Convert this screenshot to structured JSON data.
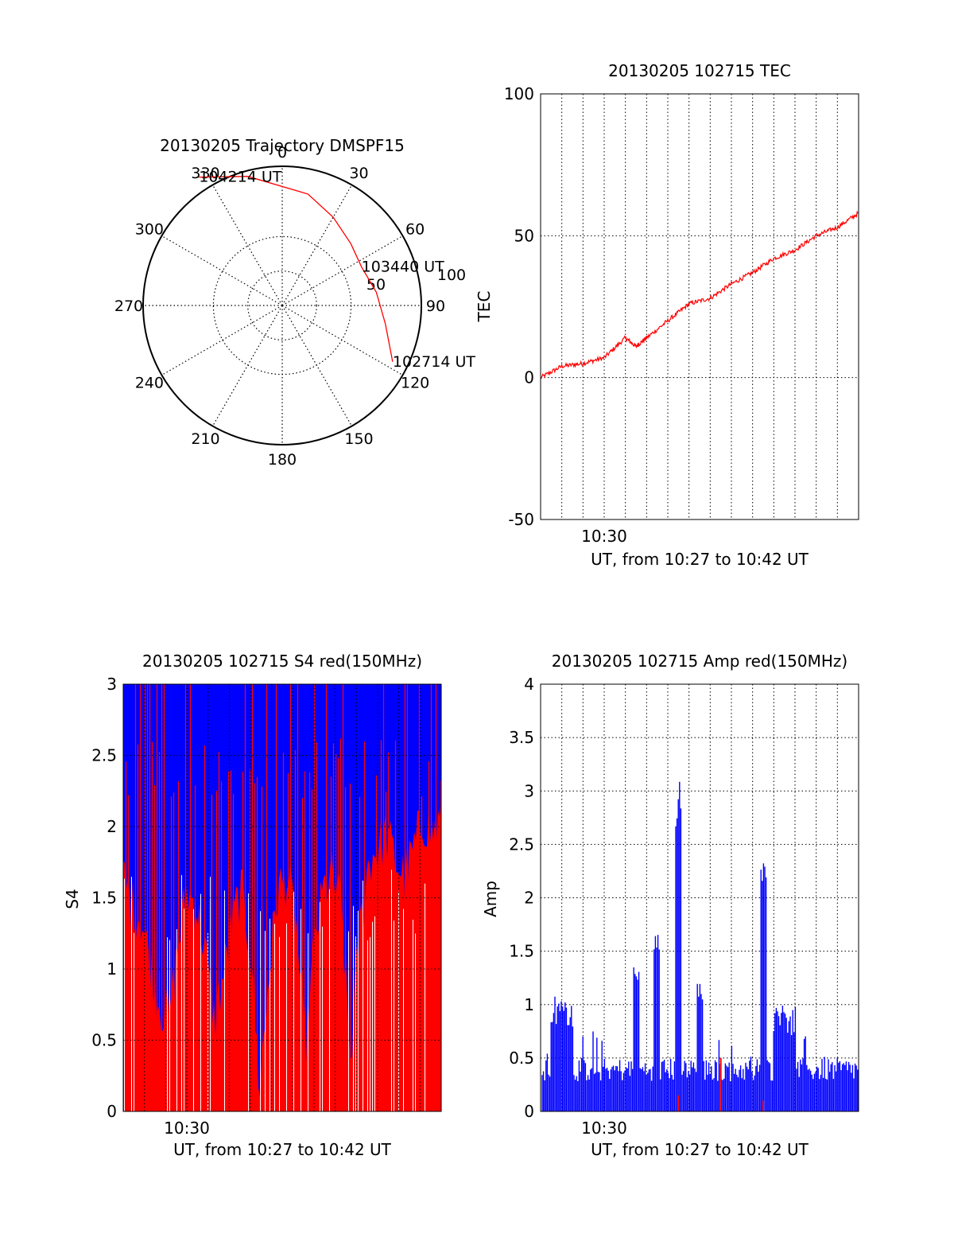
{
  "chart_data": [
    {
      "type": "polar",
      "title": "20130205 Trajectory DMSPF15",
      "azimuth_labels": [
        "0",
        "30",
        "60",
        "90",
        "120",
        "150",
        "180",
        "210",
        "240",
        "270",
        "300",
        "330"
      ],
      "azimuth_values": [
        0,
        30,
        60,
        90,
        120,
        150,
        180,
        210,
        240,
        270,
        300,
        330
      ],
      "radial_labels": [
        "50",
        "100"
      ],
      "radial_values": [
        50,
        100
      ],
      "trajectory_color": "#ff0000",
      "trajectory": [
        {
          "az": 117,
          "r": 90
        },
        {
          "az": 100,
          "r": 76
        },
        {
          "az": 82,
          "r": 69
        },
        {
          "az": 64,
          "r": 64
        },
        {
          "az": 48,
          "r": 67
        },
        {
          "az": 30,
          "r": 74
        },
        {
          "az": 13,
          "r": 83
        },
        {
          "az": 345,
          "r": 97
        },
        {
          "az": 327,
          "r": 111
        }
      ],
      "annotations": [
        {
          "text": "102714 UT",
          "az": 117,
          "r": 90
        },
        {
          "text": "103440 UT",
          "az": 64,
          "r": 64
        },
        {
          "text": "104214 UT",
          "az": 327,
          "r": 111
        }
      ]
    },
    {
      "type": "line",
      "title": "20130205 102715 TEC",
      "xlabel": "UT, from 10:27 to 10:42 UT",
      "ylabel": "TEC",
      "xlim": [
        "10:27",
        "10:42"
      ],
      "ylim": [
        -50,
        100
      ],
      "yticks": [
        -50,
        0,
        50,
        100
      ],
      "xtick_labels": [
        "10:30"
      ],
      "grid": true,
      "series": [
        {
          "color": "#ff0000",
          "x": [
            "10:27",
            "10:28",
            "10:29",
            "10:30",
            "10:31",
            "10:31:30",
            "10:32",
            "10:33",
            "10:34",
            "10:35",
            "10:36",
            "10:37",
            "10:38",
            "10:39",
            "10:40",
            "10:41",
            "10:42"
          ],
          "y": [
            0,
            4,
            5,
            7,
            14,
            11,
            14,
            20,
            26,
            28,
            33,
            37,
            42,
            45,
            50,
            53,
            58
          ]
        }
      ]
    },
    {
      "type": "bar",
      "title": "20130205 102715 S4 red(150MHz)",
      "xlabel": "UT, from 10:27 to 10:42 UT",
      "ylabel": "S4",
      "xlim": [
        "10:27",
        "10:42"
      ],
      "ylim": [
        0,
        3
      ],
      "yticks": [
        "0",
        "0.5",
        "1",
        "1.5",
        "2",
        "2.5",
        "3"
      ],
      "xtick_labels": [
        "10:30"
      ],
      "grid": true,
      "series": [
        {
          "name": "",
          "color": "#ff0000",
          "description": "dense spikes saturating at 3, base level near 1.7"
        },
        {
          "name": "",
          "color": "#0000ff",
          "description": "band between ~1.5 and 3 with dips"
        }
      ],
      "envelope_lower": [
        1.9,
        1.7,
        1.6,
        1.3,
        1.0,
        0.9,
        1.4,
        1.8,
        1.7,
        1.4,
        0.9,
        1.2,
        1.6,
        1.8,
        1.4,
        0.4,
        1.2,
        1.8,
        1.9,
        1.6,
        0.7,
        1.4,
        1.8,
        1.9,
        1.7,
        0.6,
        1.5,
        2.0,
        2.1,
        2.2,
        2.0,
        1.9,
        2.1,
        2.3,
        2.2,
        2.3
      ]
    },
    {
      "type": "bar",
      "title": "20130205 102715 Amp red(150MHz)",
      "xlabel": "UT, from 10:27 to 10:42 UT",
      "ylabel": "Amp",
      "xlim": [
        "10:27",
        "10:42"
      ],
      "ylim": [
        0,
        4
      ],
      "yticks": [
        "0",
        "0.5",
        "1",
        "1.5",
        "2",
        "2.5",
        "3",
        "3.5",
        "4"
      ],
      "xtick_labels": [
        "10:30"
      ],
      "grid": true,
      "series": [
        {
          "name": "",
          "color": "#0000ff",
          "description": "noise ~0.3-0.5 with bursts"
        },
        {
          "name": "",
          "color": "#ff0000",
          "description": "near-zero with small spikes"
        }
      ],
      "peaks": [
        {
          "t": "10:28",
          "value": 1.1
        },
        {
          "t": "10:31:30",
          "value": 1.4
        },
        {
          "t": "10:32:30",
          "value": 1.75
        },
        {
          "t": "10:33:30",
          "value": 3.1
        },
        {
          "t": "10:34:30",
          "value": 1.2
        },
        {
          "t": "10:37:30",
          "value": 2.35
        },
        {
          "t": "10:38:30",
          "value": 1.0
        }
      ]
    }
  ]
}
